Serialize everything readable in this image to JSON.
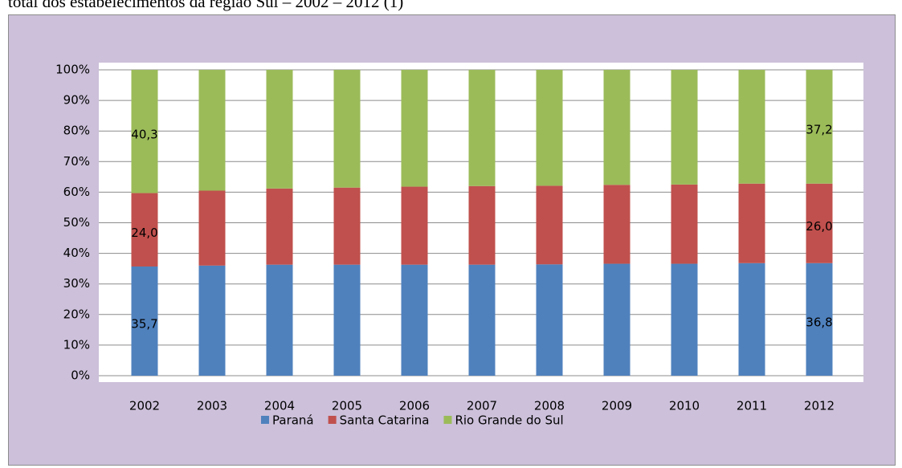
{
  "caption": "total dos estabelecimentos da região Sul – 2002 – 2012 (1)",
  "chart_data": {
    "type": "stacked_bar",
    "categories": [
      "2002",
      "2003",
      "2004",
      "2005",
      "2006",
      "2007",
      "2008",
      "2009",
      "2010",
      "2011",
      "2012"
    ],
    "series": [
      {
        "name": "Paraná",
        "color": "#4f81bd",
        "values": [
          35.7,
          36.0,
          36.3,
          36.3,
          36.3,
          36.3,
          36.4,
          36.6,
          36.6,
          36.8,
          36.8
        ],
        "value_labels": [
          "35,7",
          null,
          null,
          null,
          null,
          null,
          null,
          null,
          null,
          null,
          "36,8"
        ]
      },
      {
        "name": "Santa Catarina",
        "color": "#c0504d",
        "values": [
          24.0,
          24.5,
          24.9,
          25.2,
          25.5,
          25.7,
          25.7,
          25.8,
          25.9,
          26.0,
          26.0
        ],
        "value_labels": [
          "24,0",
          null,
          null,
          null,
          null,
          null,
          null,
          null,
          null,
          null,
          "26,0"
        ]
      },
      {
        "name": "Rio Grande do Sul",
        "color": "#9bbb59",
        "values": [
          40.3,
          39.5,
          38.8,
          38.5,
          38.2,
          38.0,
          37.9,
          37.6,
          37.5,
          37.2,
          37.2
        ],
        "value_labels": [
          "40,3",
          null,
          null,
          null,
          null,
          null,
          null,
          null,
          null,
          null,
          "37,2"
        ]
      }
    ],
    "ylim": [
      0,
      100
    ],
    "yticks": [
      {
        "value": 0,
        "label": "0%"
      },
      {
        "value": 10,
        "label": "10%"
      },
      {
        "value": 20,
        "label": "20%"
      },
      {
        "value": 30,
        "label": "30%"
      },
      {
        "value": 40,
        "label": "40%"
      },
      {
        "value": 50,
        "label": "50%"
      },
      {
        "value": 60,
        "label": "60%"
      },
      {
        "value": 70,
        "label": "70%"
      },
      {
        "value": 80,
        "label": "80%"
      },
      {
        "value": 90,
        "label": "90%"
      },
      {
        "value": 100,
        "label": "100%"
      }
    ],
    "grid": true,
    "legend": "bottom"
  }
}
